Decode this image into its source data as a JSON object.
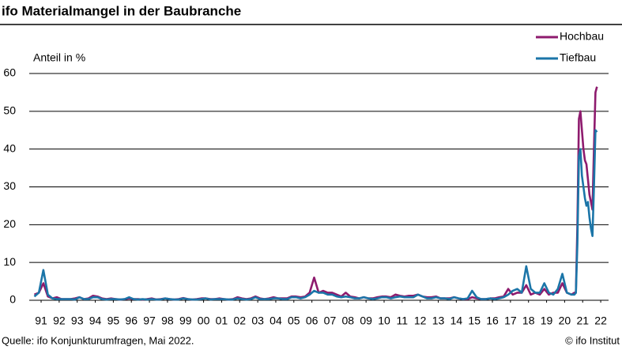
{
  "chart_data": {
    "type": "line",
    "title": "ifo Materialmangel in der Baubranche",
    "ylabel": "Anteil in %",
    "source": "Quelle: ifo Konjunkturumfragen, Mai 2022.",
    "copyright": "© ifo Institut",
    "legend": "top-right",
    "grid": true,
    "ylim": [
      0,
      60
    ],
    "yticks": [
      0,
      10,
      20,
      30,
      40,
      50,
      60
    ],
    "xlim": [
      1991,
      2023
    ],
    "xticks": [
      {
        "value": 1991.5,
        "label": "91"
      },
      {
        "value": 1992.5,
        "label": "92"
      },
      {
        "value": 1993.5,
        "label": "93"
      },
      {
        "value": 1994.5,
        "label": "94"
      },
      {
        "value": 1995.5,
        "label": "95"
      },
      {
        "value": 1996.5,
        "label": "96"
      },
      {
        "value": 1997.5,
        "label": "97"
      },
      {
        "value": 1998.5,
        "label": "98"
      },
      {
        "value": 1999.5,
        "label": "99"
      },
      {
        "value": 2000.5,
        "label": "00"
      },
      {
        "value": 2001.5,
        "label": "01"
      },
      {
        "value": 2002.5,
        "label": "02"
      },
      {
        "value": 2003.5,
        "label": "03"
      },
      {
        "value": 2004.5,
        "label": "04"
      },
      {
        "value": 2005.5,
        "label": "05"
      },
      {
        "value": 2006.5,
        "label": "06"
      },
      {
        "value": 2007.5,
        "label": "07"
      },
      {
        "value": 2008.5,
        "label": "08"
      },
      {
        "value": 2009.5,
        "label": "09"
      },
      {
        "value": 2010.5,
        "label": "10"
      },
      {
        "value": 2011.5,
        "label": "11"
      },
      {
        "value": 2012.5,
        "label": "12"
      },
      {
        "value": 2013.5,
        "label": "13"
      },
      {
        "value": 2014.5,
        "label": "14"
      },
      {
        "value": 2015.5,
        "label": "15"
      },
      {
        "value": 2016.5,
        "label": "16"
      },
      {
        "value": 2017.5,
        "label": "17"
      },
      {
        "value": 2018.5,
        "label": "18"
      },
      {
        "value": 2019.5,
        "label": "19"
      },
      {
        "value": 2020.5,
        "label": "20"
      },
      {
        "value": 2021.5,
        "label": "21"
      },
      {
        "value": 2022.5,
        "label": "22"
      }
    ],
    "x": [
      1991.125,
      1991.375,
      1991.625,
      1991.875,
      1992.125,
      1992.375,
      1992.625,
      1992.875,
      1993.125,
      1993.375,
      1993.625,
      1993.875,
      1994.125,
      1994.375,
      1994.625,
      1994.875,
      1995.125,
      1995.375,
      1995.625,
      1995.875,
      1996.125,
      1996.375,
      1996.625,
      1996.875,
      1997.125,
      1997.375,
      1997.625,
      1997.875,
      1998.125,
      1998.375,
      1998.625,
      1998.875,
      1999.125,
      1999.375,
      1999.625,
      1999.875,
      2000.125,
      2000.375,
      2000.625,
      2000.875,
      2001.125,
      2001.375,
      2001.625,
      2001.875,
      2002.125,
      2002.375,
      2002.625,
      2002.875,
      2003.125,
      2003.375,
      2003.625,
      2003.875,
      2004.125,
      2004.375,
      2004.625,
      2004.875,
      2005.125,
      2005.375,
      2005.625,
      2005.875,
      2006.125,
      2006.375,
      2006.625,
      2006.875,
      2007.125,
      2007.375,
      2007.625,
      2007.875,
      2008.125,
      2008.375,
      2008.625,
      2008.875,
      2009.125,
      2009.375,
      2009.625,
      2009.875,
      2010.125,
      2010.375,
      2010.625,
      2010.875,
      2011.125,
      2011.375,
      2011.625,
      2011.875,
      2012.125,
      2012.375,
      2012.625,
      2012.875,
      2013.125,
      2013.375,
      2013.625,
      2013.875,
      2014.125,
      2014.375,
      2014.625,
      2014.875,
      2015.125,
      2015.375,
      2015.625,
      2015.875,
      2016.125,
      2016.375,
      2016.625,
      2016.875,
      2017.125,
      2017.375,
      2017.625,
      2017.875,
      2018.125,
      2018.375,
      2018.625,
      2018.875,
      2019.125,
      2019.375,
      2019.625,
      2019.875,
      2020.125,
      2020.375,
      2020.625,
      2020.875,
      2021.042,
      2021.125,
      2021.208,
      2021.292,
      2021.375,
      2021.458,
      2021.542,
      2021.625,
      2021.708,
      2021.792,
      2021.875,
      2021.958,
      2022.042,
      2022.125,
      2022.208,
      2022.292
    ],
    "series": [
      {
        "name": "Hochbau",
        "color": "#8e1b6e",
        "values": [
          1.5,
          2,
          4.5,
          1,
          0.5,
          0.8,
          0.3,
          0.3,
          0.3,
          0.5,
          0.8,
          0.3,
          0.5,
          1.2,
          1,
          0.5,
          0.3,
          0.5,
          0.3,
          0.2,
          0.3,
          0.5,
          0.3,
          0.3,
          0.2,
          0.3,
          0.5,
          0.2,
          0.3,
          0.5,
          0.3,
          0.2,
          0.3,
          0.6,
          0.3,
          0.2,
          0.3,
          0.5,
          0.5,
          0.3,
          0.3,
          0.5,
          0.3,
          0.2,
          0.3,
          0.8,
          0.5,
          0.3,
          0.5,
          1,
          0.5,
          0.3,
          0.5,
          0.8,
          0.5,
          0.5,
          0.5,
          1,
          1,
          0.8,
          1,
          2,
          6,
          2,
          2.5,
          2,
          2,
          1.5,
          1,
          2,
          1,
          0.8,
          0.5,
          0.8,
          0.5,
          0.5,
          0.8,
          1,
          1,
          0.8,
          1.5,
          1.2,
          1,
          1.2,
          1.2,
          1.5,
          1,
          0.8,
          0.8,
          1,
          0.5,
          0.5,
          0.5,
          0.8,
          0.5,
          0.3,
          0.3,
          0.8,
          0.5,
          0.3,
          0.3,
          0.5,
          0.5,
          0.8,
          1,
          3,
          1.5,
          2,
          2,
          4,
          1.5,
          2,
          1.5,
          3,
          1.5,
          2,
          2,
          4.5,
          2,
          1.5,
          2,
          2,
          20,
          48,
          50,
          45,
          40,
          37,
          36,
          32,
          28,
          26,
          24,
          40,
          55,
          56.5
        ]
      },
      {
        "name": "Tiefbau",
        "color": "#1b75a8",
        "values": [
          1,
          2,
          8,
          1.5,
          0.5,
          0.3,
          0.3,
          0.3,
          0.3,
          0.2,
          0.8,
          0.3,
          0.3,
          0.8,
          0.8,
          0.3,
          0.2,
          0.3,
          0.3,
          0.2,
          0.3,
          0.8,
          0.3,
          0.2,
          0.3,
          0.2,
          0.3,
          0.2,
          0.2,
          0.5,
          0.3,
          0.2,
          0.2,
          0.5,
          0.3,
          0.2,
          0.2,
          0.3,
          0.5,
          0.2,
          0.3,
          0.3,
          0.3,
          0.2,
          0.2,
          0.5,
          0.3,
          0.2,
          0.3,
          0.8,
          0.3,
          0.3,
          0.3,
          0.5,
          0.5,
          0.3,
          0.3,
          0.8,
          0.8,
          0.5,
          0.8,
          1.5,
          2.5,
          2,
          2,
          1.5,
          1.5,
          1,
          0.8,
          1,
          0.8,
          0.5,
          0.5,
          0.8,
          0.5,
          0.3,
          0.5,
          0.8,
          0.8,
          0.5,
          0.8,
          1,
          0.8,
          0.8,
          0.8,
          1.5,
          1,
          0.5,
          0.5,
          0.8,
          0.5,
          0.5,
          0.3,
          0.8,
          0.5,
          0.3,
          0.5,
          2.5,
          0.8,
          0.3,
          0.3,
          0.5,
          0.3,
          0.5,
          0.8,
          1.5,
          2.5,
          3,
          2,
          9,
          3,
          2,
          2,
          4.5,
          2,
          1.5,
          3,
          7,
          2,
          1.5,
          1.5,
          2,
          15,
          38,
          40,
          33,
          30,
          27,
          25,
          26,
          22,
          19,
          17,
          30,
          45,
          44.5
        ]
      }
    ]
  }
}
